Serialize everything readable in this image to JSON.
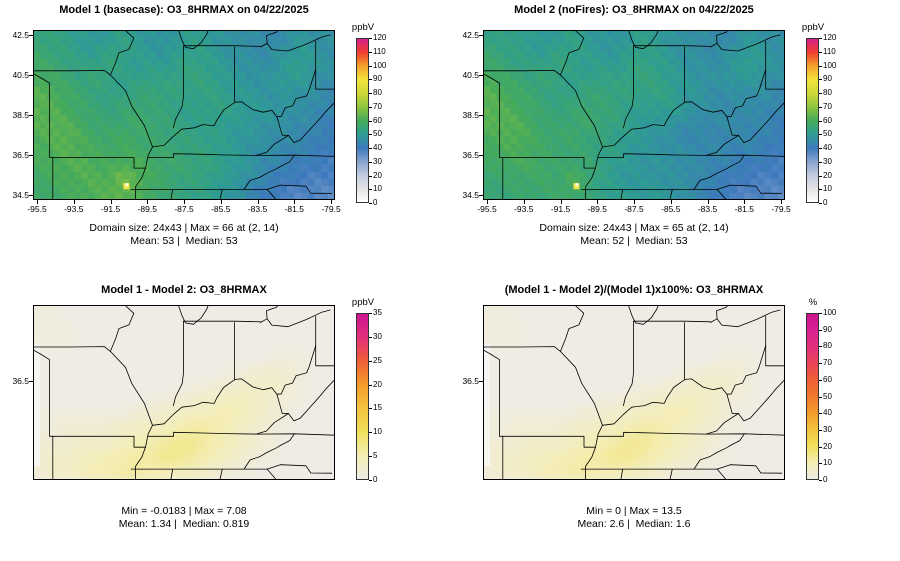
{
  "figure": {
    "background": "#ffffff"
  },
  "panels": [
    {
      "key": "model1",
      "title": "Model 1 (basecase): O3_8HRMAX on 04/22/2025",
      "unit": "ppbV",
      "caption_line1": "Domain size: 24x43 | Max = 66 at (2, 14)",
      "caption_line2": "Mean: 53 |  Median: 53",
      "palette": "conc",
      "grid": "m1"
    },
    {
      "key": "model2",
      "title": "Model 2 (noFires): O3_8HRMAX on 04/22/2025",
      "unit": "ppbV",
      "caption_line1": "Domain size: 24x43 | Max = 65 at (2, 14)",
      "caption_line2": "Mean: 52 |  Median: 53",
      "palette": "conc",
      "grid": "m2"
    },
    {
      "key": "diff",
      "title": "Model 1 - Model 2: O3_8HRMAX",
      "unit": "ppbV",
      "caption_line1": "Min = -0.0183 | Max = 7.08",
      "caption_line2": "Mean: 1.34 |  Median: 0.819",
      "palette": "diff",
      "grid": "diff"
    },
    {
      "key": "pctdiff",
      "title": "(Model 1 - Model 2)/(Model 1)x100%: O3_8HRMAX",
      "unit": "%",
      "caption_line1": "Min = 0 | Max = 13.5",
      "caption_line2": "Mean: 2.6 |  Median: 1.6",
      "palette": "pct",
      "grid": "pct"
    }
  ],
  "axes": {
    "lon_range": [
      -95.5,
      -79.5
    ],
    "lat_range": [
      34.5,
      42.5
    ],
    "x_tick_labels": [
      "-95.5",
      "-93.5",
      "-91.5",
      "-89.5",
      "-87.5",
      "-85.5",
      "-83.5",
      "-81.5",
      "-79.5"
    ],
    "y_tick_labels_top": [
      "42.5",
      "40.5",
      "38.5",
      "36.5",
      "34.5"
    ],
    "y_tick_labels_bottom": [
      "36.5"
    ],
    "y_tick_bottom_frac": 0.434
  },
  "colorbars": {
    "conc": {
      "min": 0,
      "max": 120,
      "ticks": [
        "0",
        "10",
        "20",
        "30",
        "40",
        "50",
        "60",
        "70",
        "80",
        "90",
        "100",
        "110",
        "120"
      ],
      "unit": "ppbV"
    },
    "diff": {
      "min": 0,
      "max": 35,
      "ticks": [
        "0",
        "5",
        "10",
        "15",
        "20",
        "25",
        "30",
        "35"
      ],
      "unit": "ppbV"
    },
    "pct": {
      "min": 0,
      "max": 100,
      "ticks": [
        "0",
        "10",
        "20",
        "30",
        "40",
        "50",
        "60",
        "70",
        "80",
        "90",
        "100"
      ],
      "unit": "%"
    }
  },
  "palettes": {
    "conc": {
      "values": [
        0,
        10,
        20,
        30,
        40,
        50,
        60,
        70,
        80,
        90,
        100,
        110,
        120
      ],
      "colors": [
        "#FFFFFF",
        "#E3E3E3",
        "#C0CADF",
        "#86A2CE",
        "#3C79BC",
        "#2E9D92",
        "#47AB5A",
        "#8FC43F",
        "#CFD93A",
        "#F2E33C",
        "#F5A42B",
        "#EE3F2D",
        "#D6218E"
      ]
    },
    "diff": {
      "values": [
        0,
        5,
        10,
        15,
        20,
        25,
        30,
        35
      ],
      "colors": [
        "#EFECE6",
        "#F4EDB4",
        "#F0E05A",
        "#F3C33E",
        "#F49C2C",
        "#EE5F36",
        "#E3307B",
        "#CC1490"
      ]
    },
    "pct": {
      "values": [
        0,
        10,
        20,
        30,
        40,
        50,
        60,
        70,
        80,
        90,
        100
      ],
      "colors": [
        "#EFECE6",
        "#F4EDB4",
        "#F0E05A",
        "#F3C33E",
        "#F49C2C",
        "#F0782F",
        "#EE5F36",
        "#E84558",
        "#E3307B",
        "#D92090",
        "#CC1490"
      ]
    }
  },
  "max_marker": {
    "lon": -90.55,
    "lat": 35.15,
    "color": "#F3E64A",
    "inner_color": "#FDFBE8"
  },
  "chart_data": [
    {
      "type": "heatmap",
      "title": "Model 1 (basecase): O3_8HRMAX on 04/22/2025",
      "unit": "ppbV",
      "x_range": [
        -95.5,
        -79.5
      ],
      "y_range": [
        34.5,
        42.5
      ],
      "colorbar_ticks": [
        0,
        10,
        20,
        30,
        40,
        50,
        60,
        70,
        80,
        90,
        100,
        110,
        120
      ],
      "stats": {
        "domain_size": "24x43",
        "max": 66,
        "max_at": [
          2,
          14
        ],
        "mean": 53,
        "median": 53
      },
      "grid_rows": 12,
      "grid_cols": 22,
      "values": [
        [
          54,
          53,
          52,
          50,
          48,
          50,
          52,
          50,
          48,
          47,
          49,
          51,
          50,
          48,
          46,
          47,
          45,
          44,
          46,
          48,
          47,
          46
        ],
        [
          56,
          54,
          53,
          51,
          50,
          52,
          53,
          51,
          49,
          48,
          50,
          52,
          51,
          49,
          47,
          46,
          45,
          46,
          48,
          50,
          48,
          46
        ],
        [
          58,
          56,
          54,
          52,
          53,
          54,
          52,
          50,
          51,
          50,
          52,
          53,
          52,
          50,
          48,
          47,
          46,
          47,
          49,
          51,
          49,
          47
        ],
        [
          60,
          58,
          56,
          54,
          55,
          53,
          51,
          52,
          53,
          52,
          53,
          54,
          53,
          51,
          49,
          48,
          47,
          48,
          50,
          49,
          47,
          45
        ],
        [
          62,
          60,
          58,
          56,
          54,
          52,
          53,
          54,
          55,
          54,
          53,
          52,
          53,
          52,
          50,
          49,
          48,
          47,
          48,
          47,
          46,
          44
        ],
        [
          63,
          61,
          59,
          57,
          55,
          54,
          55,
          56,
          55,
          54,
          52,
          51,
          52,
          53,
          51,
          50,
          49,
          48,
          47,
          46,
          45,
          43
        ],
        [
          62,
          63,
          61,
          58,
          56,
          55,
          56,
          57,
          56,
          55,
          53,
          52,
          51,
          52,
          50,
          49,
          48,
          47,
          46,
          45,
          44,
          42
        ],
        [
          61,
          62,
          63,
          60,
          58,
          57,
          58,
          57,
          56,
          55,
          54,
          53,
          52,
          51,
          49,
          48,
          47,
          46,
          45,
          44,
          43,
          41
        ],
        [
          60,
          61,
          62,
          61,
          59,
          58,
          59,
          58,
          57,
          56,
          55,
          54,
          53,
          52,
          50,
          48,
          46,
          45,
          44,
          43,
          42,
          40
        ],
        [
          59,
          60,
          61,
          62,
          60,
          59,
          60,
          61,
          58,
          57,
          56,
          55,
          54,
          52,
          50,
          48,
          46,
          44,
          42,
          41,
          40,
          39
        ],
        [
          58,
          59,
          60,
          61,
          62,
          61,
          66,
          63,
          59,
          57,
          55,
          54,
          53,
          51,
          49,
          47,
          44,
          42,
          40,
          39,
          38,
          38
        ],
        [
          57,
          58,
          59,
          60,
          61,
          62,
          64,
          61,
          58,
          56,
          54,
          53,
          52,
          50,
          48,
          45,
          42,
          40,
          38,
          37,
          37,
          36
        ]
      ]
    },
    {
      "type": "heatmap",
      "title": "Model 2 (noFires): O3_8HRMAX on 04/22/2025",
      "unit": "ppbV",
      "x_range": [
        -95.5,
        -79.5
      ],
      "y_range": [
        34.5,
        42.5
      ],
      "colorbar_ticks": [
        0,
        10,
        20,
        30,
        40,
        50,
        60,
        70,
        80,
        90,
        100,
        110,
        120
      ],
      "stats": {
        "domain_size": "24x43",
        "max": 65,
        "max_at": [
          2,
          14
        ],
        "mean": 52,
        "median": 53
      },
      "derived": "model1_values_minus_diff_values"
    },
    {
      "type": "heatmap",
      "title": "Model 1 - Model 2: O3_8HRMAX",
      "unit": "ppbV",
      "x_range": [
        -95.5,
        -79.5
      ],
      "y_range": [
        34.5,
        42.5
      ],
      "colorbar_ticks": [
        0,
        5,
        10,
        15,
        20,
        25,
        30,
        35
      ],
      "stats": {
        "min": -0.0183,
        "max": 7.08,
        "mean": 1.34,
        "median": 0.819
      },
      "grid_rows": 12,
      "grid_cols": 22,
      "values": [
        [
          1,
          1,
          0,
          0,
          0,
          0,
          0,
          0,
          0,
          0,
          0,
          0,
          0,
          0,
          0,
          0,
          0,
          0,
          0,
          0,
          0,
          0
        ],
        [
          1,
          1,
          1,
          0,
          0,
          0,
          0,
          0,
          0,
          0,
          0,
          0,
          0,
          0,
          0,
          0,
          0,
          0,
          0,
          0,
          0,
          0
        ],
        [
          1,
          1,
          1,
          0,
          0,
          0,
          0,
          0,
          0,
          0,
          0,
          0,
          0,
          0,
          0,
          0,
          0,
          0,
          0,
          0,
          0,
          0
        ],
        [
          0,
          0,
          0,
          0,
          0,
          0,
          0,
          0,
          0,
          0,
          0,
          0,
          0,
          0,
          0,
          0,
          0,
          1,
          1,
          1,
          0,
          0
        ],
        [
          0,
          0,
          0,
          0,
          0,
          0,
          0,
          0,
          0,
          0,
          0,
          0,
          0,
          0,
          1,
          1,
          2,
          2,
          2,
          1,
          0,
          0
        ],
        [
          0,
          0,
          0,
          0,
          0,
          0,
          0,
          0,
          0,
          0,
          0,
          1,
          1,
          2,
          2,
          3,
          3,
          3,
          2,
          1,
          0,
          0
        ],
        [
          0,
          0,
          0,
          0,
          0,
          0,
          0,
          0,
          1,
          1,
          2,
          2,
          3,
          3,
          4,
          4,
          3,
          2,
          1,
          1,
          0,
          0
        ],
        [
          1,
          1,
          1,
          1,
          1,
          1,
          1,
          2,
          2,
          3,
          3,
          4,
          4,
          5,
          5,
          4,
          3,
          2,
          1,
          0,
          0,
          0
        ],
        [
          1,
          1,
          2,
          2,
          2,
          2,
          3,
          3,
          4,
          4,
          5,
          6,
          6,
          5,
          4,
          3,
          2,
          1,
          1,
          0,
          0,
          0
        ],
        [
          2,
          2,
          2,
          3,
          3,
          3,
          4,
          5,
          5,
          6,
          7,
          7,
          6,
          5,
          4,
          3,
          2,
          1,
          0,
          0,
          0,
          0
        ],
        [
          2,
          3,
          3,
          4,
          4,
          5,
          5,
          6,
          6,
          7,
          7,
          6,
          5,
          4,
          3,
          2,
          1,
          1,
          0,
          0,
          0,
          0
        ],
        [
          2,
          3,
          3,
          4,
          5,
          5,
          6,
          6,
          5,
          5,
          4,
          4,
          3,
          2,
          1,
          1,
          0,
          0,
          0,
          0,
          0,
          0
        ]
      ]
    },
    {
      "type": "heatmap",
      "title": "(Model 1 - Model 2)/(Model 1)x100%: O3_8HRMAX",
      "unit": "%",
      "x_range": [
        -95.5,
        -79.5
      ],
      "y_range": [
        34.5,
        42.5
      ],
      "colorbar_ticks": [
        0,
        10,
        20,
        30,
        40,
        50,
        60,
        70,
        80,
        90,
        100
      ],
      "stats": {
        "min": 0,
        "max": 13.5,
        "mean": 2.6,
        "median": 1.6
      },
      "derived": "diff_values_scaled",
      "scale_from_diff": 1.93
    }
  ]
}
